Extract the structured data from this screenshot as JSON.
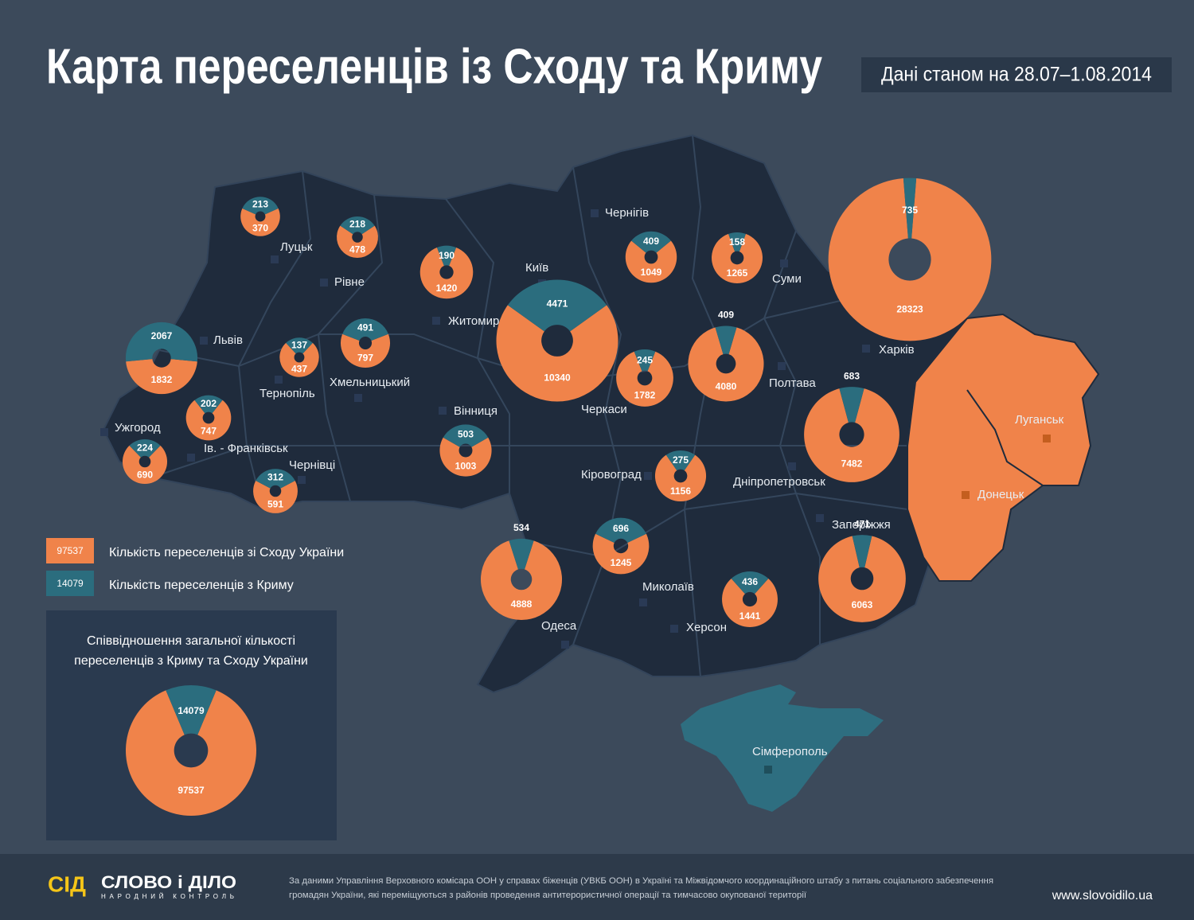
{
  "header": {
    "title": "Карта переселенців із Сходу та Криму",
    "date": "Дані станом на 28.07–1.08.2014"
  },
  "regions": [
    {
      "name": "Луцьк",
      "crimea": 213,
      "east": 370
    },
    {
      "name": "Рівне",
      "crimea": 218,
      "east": 478
    },
    {
      "name": "Житомир",
      "crimea": 190,
      "east": 1420
    },
    {
      "name": "Чернігів",
      "crimea": 409,
      "east": 1049
    },
    {
      "name": "Суми",
      "crimea": 158,
      "east": 1265
    },
    {
      "name": "Харків",
      "crimea": 735,
      "east": 28323
    },
    {
      "name": "Львів",
      "crimea": 2067,
      "east": 1832
    },
    {
      "name": "Тернопіль",
      "crimea": 137,
      "east": 437
    },
    {
      "name": "Хмельницький",
      "crimea": 491,
      "east": 797
    },
    {
      "name": "Київ",
      "crimea": 4471,
      "east": 10340
    },
    {
      "name": "Черкаси",
      "crimea": 245,
      "east": 1782
    },
    {
      "name": "Полтава",
      "crimea": 409,
      "east": 4080
    },
    {
      "name": "Вінниця",
      "crimea": 503,
      "east": 1003
    },
    {
      "name": "Ужгород",
      "crimea": 224,
      "east": 690
    },
    {
      "name": "Ів. - Франківськ",
      "crimea": 202,
      "east": 747
    },
    {
      "name": "Чернівці",
      "crimea": 312,
      "east": 591
    },
    {
      "name": "Кіровоград",
      "crimea": 275,
      "east": 1156
    },
    {
      "name": "Дніпропетровськ",
      "crimea": 683,
      "east": 7482
    },
    {
      "name": "Запоріжжя",
      "crimea": 471,
      "east": 6063
    },
    {
      "name": "Одеса",
      "crimea": 534,
      "east": 4888
    },
    {
      "name": "Миколаїв",
      "crimea": 696,
      "east": 1245
    },
    {
      "name": "Херсон",
      "crimea": 436,
      "east": 1441
    }
  ],
  "occupied": [
    "Луганськ",
    "Донецьк",
    "Сімферополь"
  ],
  "legend": {
    "east_label": "Кількість переселенців зі Сходу України",
    "crimea_label": "Кількість переселенців з Криму",
    "east_color": "#f0834a",
    "crimea_color": "#2b6d7e"
  },
  "summary": {
    "title_lines": [
      "Співвідношення загальної кількості",
      "переселенців з Криму та Сходу України"
    ],
    "crimea": 14079,
    "east": 97537
  },
  "footer": {
    "logo_icon": "СІД",
    "logo": "СЛОВО і ДІЛО",
    "logo_sub": "НАРОДНИЙ КОНТРОЛЬ",
    "source_lines": [
      "За даними  Управління Верховного комісара ООН у справах біженців (УВКБ ООН) в Україні та Міжвідомчого координаційного штабу з питань соціального забезпечення",
      "громадян України, які переміщуються з районів проведення антитерористичної операції та тимчасово окупованої території"
    ],
    "site": "www.slovoidilo.ua"
  }
}
